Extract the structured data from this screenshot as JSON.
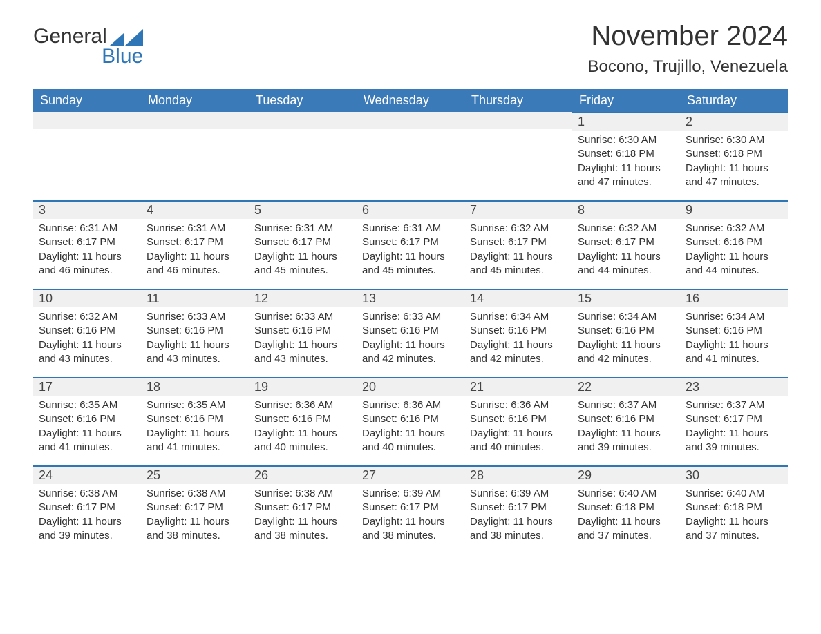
{
  "brand": {
    "name_part1": "General",
    "name_part2": "Blue",
    "color_primary": "#2e76b6",
    "color_text": "#333333"
  },
  "header": {
    "month_title": "November 2024",
    "location": "Bocono, Trujillo, Venezuela"
  },
  "calendar": {
    "header_bg": "#3a7ab8",
    "header_text_color": "#ffffff",
    "row_accent_color": "#2e76b6",
    "daynum_bg": "#f0f0f0",
    "day_names": [
      "Sunday",
      "Monday",
      "Tuesday",
      "Wednesday",
      "Thursday",
      "Friday",
      "Saturday"
    ],
    "weeks": [
      [
        {
          "day": "",
          "sunrise": "",
          "sunset": "",
          "daylight": ""
        },
        {
          "day": "",
          "sunrise": "",
          "sunset": "",
          "daylight": ""
        },
        {
          "day": "",
          "sunrise": "",
          "sunset": "",
          "daylight": ""
        },
        {
          "day": "",
          "sunrise": "",
          "sunset": "",
          "daylight": ""
        },
        {
          "day": "",
          "sunrise": "",
          "sunset": "",
          "daylight": ""
        },
        {
          "day": "1",
          "sunrise": "Sunrise: 6:30 AM",
          "sunset": "Sunset: 6:18 PM",
          "daylight": "Daylight: 11 hours and 47 minutes."
        },
        {
          "day": "2",
          "sunrise": "Sunrise: 6:30 AM",
          "sunset": "Sunset: 6:18 PM",
          "daylight": "Daylight: 11 hours and 47 minutes."
        }
      ],
      [
        {
          "day": "3",
          "sunrise": "Sunrise: 6:31 AM",
          "sunset": "Sunset: 6:17 PM",
          "daylight": "Daylight: 11 hours and 46 minutes."
        },
        {
          "day": "4",
          "sunrise": "Sunrise: 6:31 AM",
          "sunset": "Sunset: 6:17 PM",
          "daylight": "Daylight: 11 hours and 46 minutes."
        },
        {
          "day": "5",
          "sunrise": "Sunrise: 6:31 AM",
          "sunset": "Sunset: 6:17 PM",
          "daylight": "Daylight: 11 hours and 45 minutes."
        },
        {
          "day": "6",
          "sunrise": "Sunrise: 6:31 AM",
          "sunset": "Sunset: 6:17 PM",
          "daylight": "Daylight: 11 hours and 45 minutes."
        },
        {
          "day": "7",
          "sunrise": "Sunrise: 6:32 AM",
          "sunset": "Sunset: 6:17 PM",
          "daylight": "Daylight: 11 hours and 45 minutes."
        },
        {
          "day": "8",
          "sunrise": "Sunrise: 6:32 AM",
          "sunset": "Sunset: 6:17 PM",
          "daylight": "Daylight: 11 hours and 44 minutes."
        },
        {
          "day": "9",
          "sunrise": "Sunrise: 6:32 AM",
          "sunset": "Sunset: 6:16 PM",
          "daylight": "Daylight: 11 hours and 44 minutes."
        }
      ],
      [
        {
          "day": "10",
          "sunrise": "Sunrise: 6:32 AM",
          "sunset": "Sunset: 6:16 PM",
          "daylight": "Daylight: 11 hours and 43 minutes."
        },
        {
          "day": "11",
          "sunrise": "Sunrise: 6:33 AM",
          "sunset": "Sunset: 6:16 PM",
          "daylight": "Daylight: 11 hours and 43 minutes."
        },
        {
          "day": "12",
          "sunrise": "Sunrise: 6:33 AM",
          "sunset": "Sunset: 6:16 PM",
          "daylight": "Daylight: 11 hours and 43 minutes."
        },
        {
          "day": "13",
          "sunrise": "Sunrise: 6:33 AM",
          "sunset": "Sunset: 6:16 PM",
          "daylight": "Daylight: 11 hours and 42 minutes."
        },
        {
          "day": "14",
          "sunrise": "Sunrise: 6:34 AM",
          "sunset": "Sunset: 6:16 PM",
          "daylight": "Daylight: 11 hours and 42 minutes."
        },
        {
          "day": "15",
          "sunrise": "Sunrise: 6:34 AM",
          "sunset": "Sunset: 6:16 PM",
          "daylight": "Daylight: 11 hours and 42 minutes."
        },
        {
          "day": "16",
          "sunrise": "Sunrise: 6:34 AM",
          "sunset": "Sunset: 6:16 PM",
          "daylight": "Daylight: 11 hours and 41 minutes."
        }
      ],
      [
        {
          "day": "17",
          "sunrise": "Sunrise: 6:35 AM",
          "sunset": "Sunset: 6:16 PM",
          "daylight": "Daylight: 11 hours and 41 minutes."
        },
        {
          "day": "18",
          "sunrise": "Sunrise: 6:35 AM",
          "sunset": "Sunset: 6:16 PM",
          "daylight": "Daylight: 11 hours and 41 minutes."
        },
        {
          "day": "19",
          "sunrise": "Sunrise: 6:36 AM",
          "sunset": "Sunset: 6:16 PM",
          "daylight": "Daylight: 11 hours and 40 minutes."
        },
        {
          "day": "20",
          "sunrise": "Sunrise: 6:36 AM",
          "sunset": "Sunset: 6:16 PM",
          "daylight": "Daylight: 11 hours and 40 minutes."
        },
        {
          "day": "21",
          "sunrise": "Sunrise: 6:36 AM",
          "sunset": "Sunset: 6:16 PM",
          "daylight": "Daylight: 11 hours and 40 minutes."
        },
        {
          "day": "22",
          "sunrise": "Sunrise: 6:37 AM",
          "sunset": "Sunset: 6:16 PM",
          "daylight": "Daylight: 11 hours and 39 minutes."
        },
        {
          "day": "23",
          "sunrise": "Sunrise: 6:37 AM",
          "sunset": "Sunset: 6:17 PM",
          "daylight": "Daylight: 11 hours and 39 minutes."
        }
      ],
      [
        {
          "day": "24",
          "sunrise": "Sunrise: 6:38 AM",
          "sunset": "Sunset: 6:17 PM",
          "daylight": "Daylight: 11 hours and 39 minutes."
        },
        {
          "day": "25",
          "sunrise": "Sunrise: 6:38 AM",
          "sunset": "Sunset: 6:17 PM",
          "daylight": "Daylight: 11 hours and 38 minutes."
        },
        {
          "day": "26",
          "sunrise": "Sunrise: 6:38 AM",
          "sunset": "Sunset: 6:17 PM",
          "daylight": "Daylight: 11 hours and 38 minutes."
        },
        {
          "day": "27",
          "sunrise": "Sunrise: 6:39 AM",
          "sunset": "Sunset: 6:17 PM",
          "daylight": "Daylight: 11 hours and 38 minutes."
        },
        {
          "day": "28",
          "sunrise": "Sunrise: 6:39 AM",
          "sunset": "Sunset: 6:17 PM",
          "daylight": "Daylight: 11 hours and 38 minutes."
        },
        {
          "day": "29",
          "sunrise": "Sunrise: 6:40 AM",
          "sunset": "Sunset: 6:18 PM",
          "daylight": "Daylight: 11 hours and 37 minutes."
        },
        {
          "day": "30",
          "sunrise": "Sunrise: 6:40 AM",
          "sunset": "Sunset: 6:18 PM",
          "daylight": "Daylight: 11 hours and 37 minutes."
        }
      ]
    ]
  }
}
